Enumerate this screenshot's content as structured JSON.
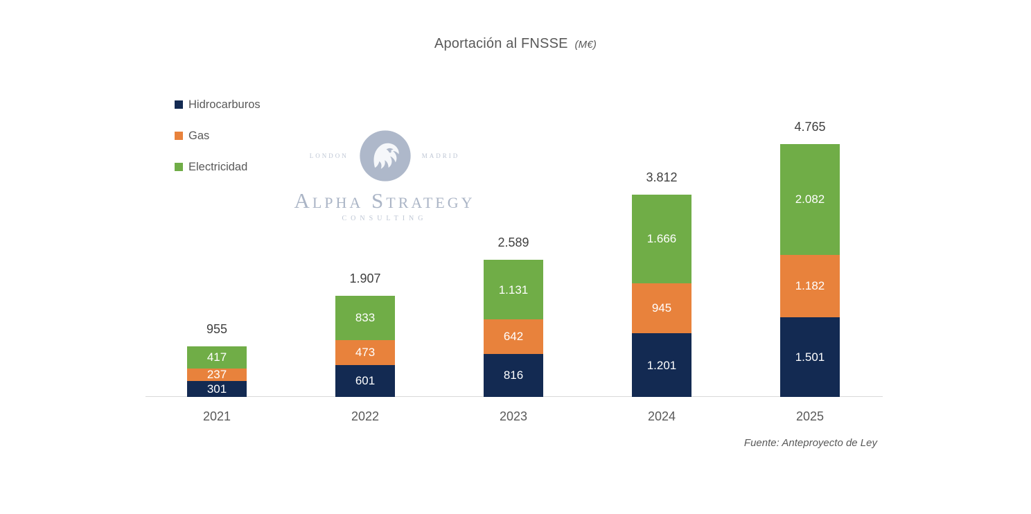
{
  "title": {
    "main": "Aportación al FNSSE",
    "unit": "(M€)"
  },
  "legend": [
    {
      "label": "Hidrocarburos",
      "color": "#132a52"
    },
    {
      "label": "Gas",
      "color": "#e8823c"
    },
    {
      "label": "Electricidad",
      "color": "#70ad47"
    }
  ],
  "logo": {
    "left_city": "LONDON",
    "right_city": "MADRID",
    "name": "Alpha Strategy",
    "subtitle": "CONSULTING",
    "color": "#a8b3c6"
  },
  "footer": {
    "text": "Fuente: Anteproyecto de Ley"
  },
  "chart_data": {
    "type": "bar",
    "stacked": true,
    "title": "Aportación al FNSSE (M€)",
    "xlabel": "",
    "ylabel": "M€",
    "ylim": [
      0,
      5000
    ],
    "grid": false,
    "legend_position": "top-left",
    "categories": [
      "2021",
      "2022",
      "2023",
      "2024",
      "2025"
    ],
    "series": [
      {
        "name": "Hidrocarburos",
        "color": "#132a52",
        "values": [
          301,
          601,
          816,
          1201,
          1501
        ],
        "labels": [
          "301",
          "601",
          "816",
          "1.201",
          "1.501"
        ]
      },
      {
        "name": "Gas",
        "color": "#e8823c",
        "values": [
          237,
          473,
          642,
          945,
          1182
        ],
        "labels": [
          "237",
          "473",
          "642",
          "945",
          "1.182"
        ]
      },
      {
        "name": "Electricidad",
        "color": "#70ad47",
        "values": [
          417,
          833,
          1131,
          1666,
          2082
        ],
        "labels": [
          "417",
          "833",
          "1.131",
          "1.666",
          "2.082"
        ]
      }
    ],
    "totals": [
      955,
      1907,
      2589,
      3812,
      4765
    ],
    "total_labels": [
      "955",
      "1.907",
      "2.589",
      "3.812",
      "4.765"
    ]
  }
}
